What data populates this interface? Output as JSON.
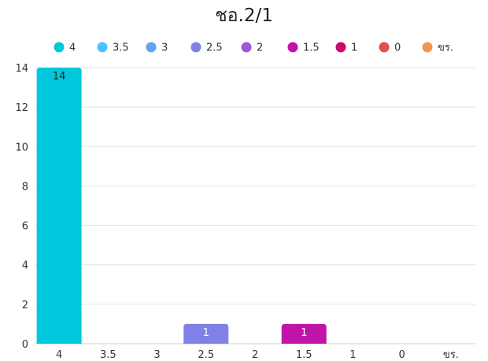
{
  "chart_data": {
    "type": "bar",
    "title": "ชอ.2/1",
    "categories": [
      "4",
      "3.5",
      "3",
      "2.5",
      "2",
      "1.5",
      "1",
      "0",
      "ขร."
    ],
    "values": [
      14,
      0,
      0,
      1,
      0,
      1,
      0,
      0,
      0
    ],
    "colors": [
      "#00c8dc",
      "#4cc3ff",
      "#63a4f2",
      "#8080e6",
      "#a057d3",
      "#c013aa",
      "#cc0a6b",
      "#e04e4e",
      "#f29552"
    ],
    "data_label_colors": [
      "#222222",
      "#ffffff",
      "#ffffff",
      "#ffffff",
      "#ffffff",
      "#ffffff",
      "#ffffff",
      "#ffffff",
      "#ffffff"
    ],
    "legend": [
      "4",
      "3.5",
      "3",
      "2.5",
      "2",
      "1.5",
      "1",
      "0",
      "ขร."
    ],
    "legend_position": "top",
    "y_ticks": [
      0,
      2,
      4,
      6,
      8,
      10,
      12,
      14
    ],
    "ylim": [
      0,
      14
    ],
    "grid": true,
    "xlabel": "",
    "ylabel": ""
  }
}
